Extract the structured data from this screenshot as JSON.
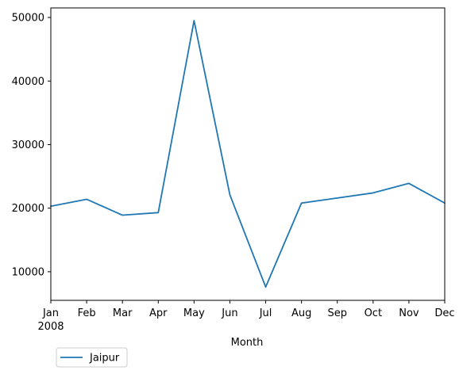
{
  "chart_data": {
    "type": "line",
    "title": "",
    "xlabel": "Month",
    "ylabel": "",
    "categories": [
      "Jan",
      "Feb",
      "Mar",
      "Apr",
      "May",
      "Jun",
      "Jul",
      "Aug",
      "Sep",
      "Oct",
      "Nov",
      "Dec"
    ],
    "x_sublabel": "2008",
    "series": [
      {
        "name": "Jaipur",
        "color": "#1f77b4",
        "values": [
          20300,
          21400,
          18900,
          19300,
          49500,
          22100,
          7600,
          20800,
          21600,
          22400,
          23900,
          20800
        ]
      }
    ],
    "ylim": [
      5500,
      51500
    ],
    "yticks": [
      10000,
      20000,
      30000,
      40000,
      50000
    ],
    "grid": false,
    "legend_position": "bottom-left, outside below axes"
  }
}
